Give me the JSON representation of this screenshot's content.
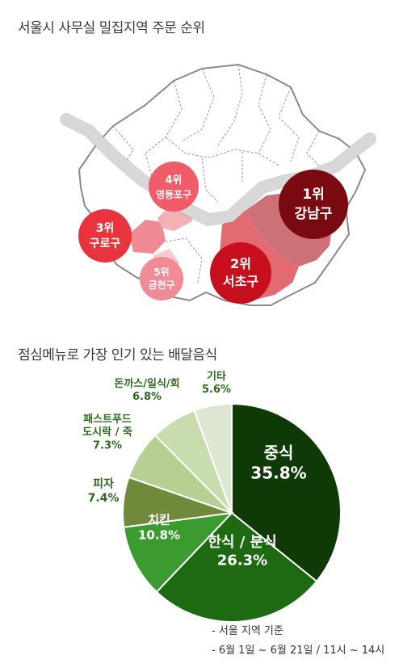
{
  "map_section": {
    "title": "서울시 사무실 밀집지역 주문 순위",
    "rankings": [
      {
        "rank_label": "1위",
        "district": "강남구",
        "color": "#7a0a12"
      },
      {
        "rank_label": "2위",
        "district": "서초구",
        "color": "#c80f1e"
      },
      {
        "rank_label": "3위",
        "district": "구로구",
        "color": "#e8343f"
      },
      {
        "rank_label": "4위",
        "district": "영등포구",
        "color": "#ef5b67"
      },
      {
        "rank_label": "5위",
        "district": "금천구",
        "color": "#f08a96"
      }
    ]
  },
  "pie_section": {
    "title": "점심메뉴로 가장 인기 있는 배달음식"
  },
  "chart_data": {
    "type": "pie",
    "slices": [
      {
        "label": "중식",
        "value": 35.8,
        "value_label": "35.8%",
        "color": "#0f3a08"
      },
      {
        "label": "한식 / 분식",
        "value": 26.3,
        "value_label": "26.3%",
        "color": "#1e6a12"
      },
      {
        "label": "치킨",
        "value": 10.8,
        "value_label": "10.8%",
        "color": "#3b9a30"
      },
      {
        "label": "피자",
        "value": 7.4,
        "value_label": "7.4%",
        "color": "#6e8a3a"
      },
      {
        "label": "패스트푸드 도시락 / 죽",
        "value": 7.3,
        "value_label": "7.3%",
        "color": "#b6cf93"
      },
      {
        "label": "돈까스/일식/회",
        "value": 6.8,
        "value_label": "6.8%",
        "color": "#c8dcae"
      },
      {
        "label": "기타",
        "value": 5.6,
        "value_label": "5.6%",
        "color": "#dde6d0"
      }
    ]
  },
  "notes": {
    "line1": "- 서울 지역 기준",
    "line2": "- 6월 1일 ~ 6월 21일 / 11시 ~ 14시"
  }
}
